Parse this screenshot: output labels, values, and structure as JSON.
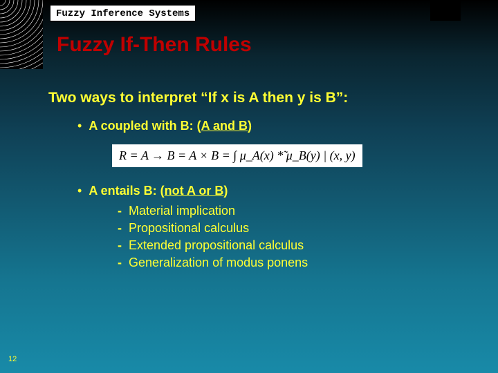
{
  "header": {
    "label": "Fuzzy Inference Systems"
  },
  "title": "Fuzzy If-Then Rules",
  "subtitle": "Two ways to interpret “If x is A then y is B”:",
  "bullets": {
    "coupled": {
      "prefix": "A coupled with B: (",
      "emph": "A and B",
      "suffix": ")"
    },
    "entails": {
      "prefix": "A entails B: (",
      "emph": "not A or B",
      "suffix": ")"
    }
  },
  "formula": "R = A → B = A × B = ∫ μ_A(x) *̃ μ_B(y) | (x, y)",
  "sub_items": [
    "Material implication",
    "Propositional calculus",
    "Extended propositional calculus",
    "Generalization of modus ponens"
  ],
  "page_number": "12",
  "arcs": {
    "stroke": "#ffffff",
    "count": 18
  }
}
